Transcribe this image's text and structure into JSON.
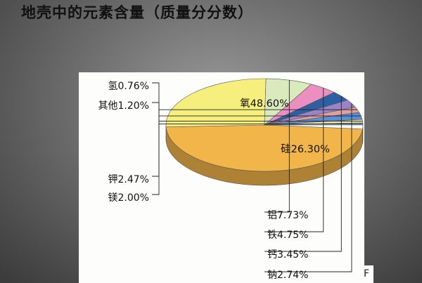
{
  "title": "地壳中的元素含量（质量分分数）",
  "edge_glyph": "F",
  "chart_data": {
    "type": "pie",
    "title": "地壳中的元素含量（质量分分数）",
    "unit": "%",
    "slices": [
      {
        "name": "氧",
        "value": 48.6,
        "label": "氧48.60%",
        "color": "#f1b54a"
      },
      {
        "name": "硅",
        "value": 26.3,
        "label": "硅26.30%",
        "color": "#f6ef7e"
      },
      {
        "name": "铝",
        "value": 7.73,
        "label": "铝7.73%",
        "color": "#d9ebbd"
      },
      {
        "name": "铁",
        "value": 4.75,
        "label": "铁4.75%",
        "color": "#ea8fc0"
      },
      {
        "name": "钙",
        "value": 3.45,
        "label": "钙3.45%",
        "color": "#2f5fa3"
      },
      {
        "name": "钠",
        "value": 2.74,
        "label": "钠2.74%",
        "color": "#9a84c8"
      },
      {
        "name": "镁",
        "value": 2.0,
        "label": "镁2.00%",
        "color": "#e39ea0"
      },
      {
        "name": "钾",
        "value": 2.47,
        "label": "钾2.47%",
        "color": "#5a8ed6"
      },
      {
        "name": "其他",
        "value": 1.2,
        "label": "其他1.20%",
        "color": "#f6e3a2"
      },
      {
        "name": "氢",
        "value": 0.76,
        "label": "氢0.76%",
        "color": "#86bfd4"
      }
    ]
  }
}
